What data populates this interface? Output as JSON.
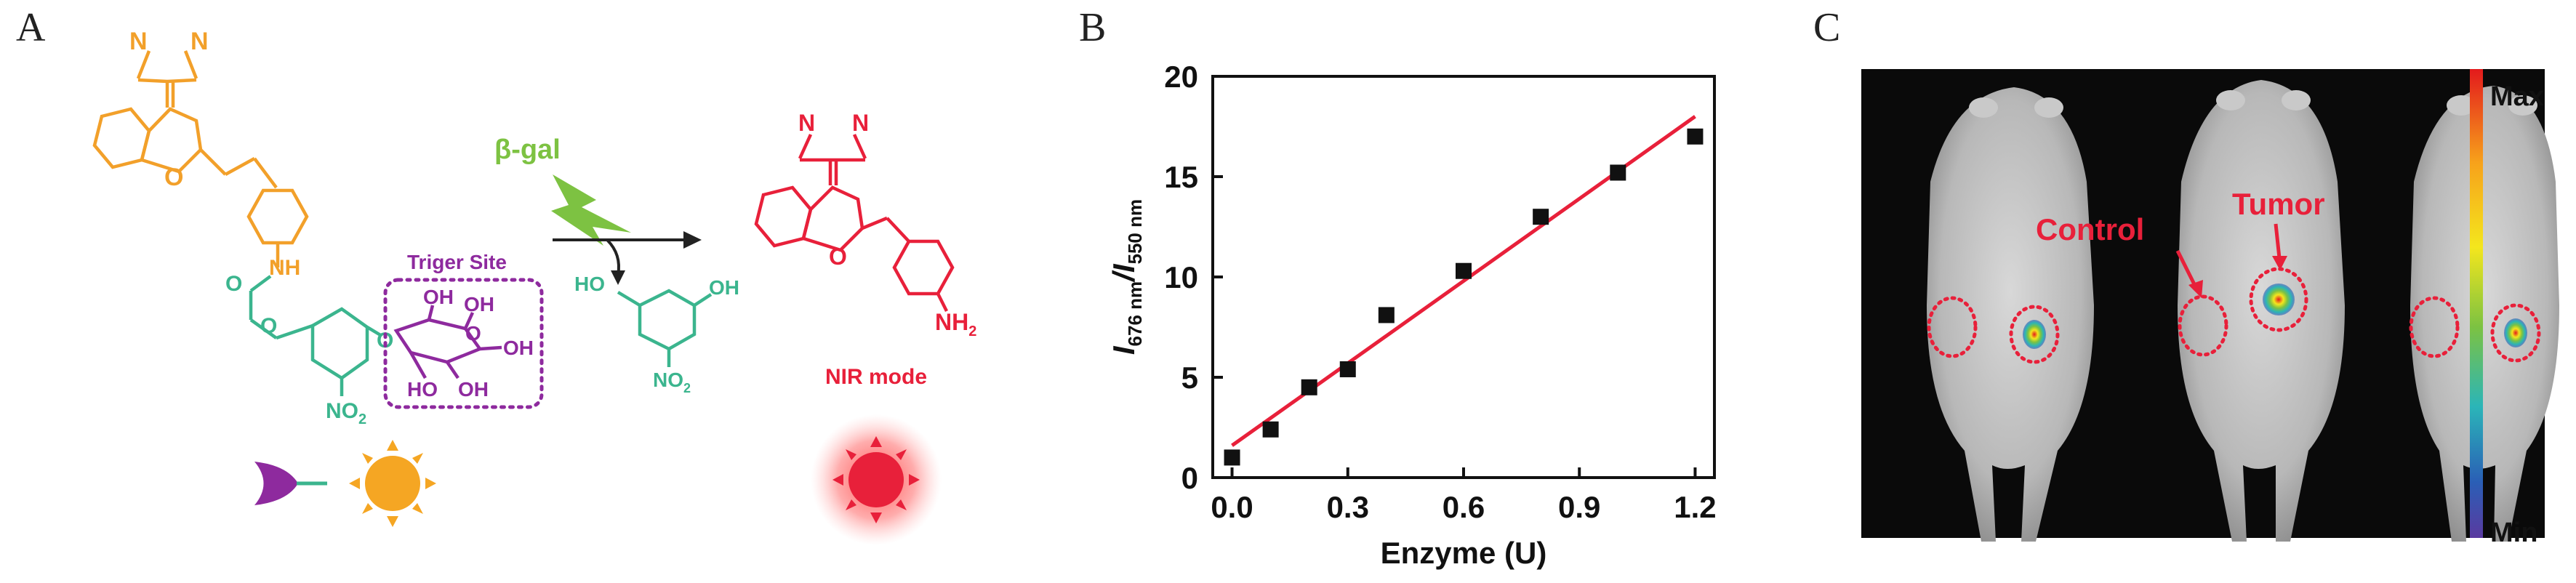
{
  "panels": {
    "a": {
      "letter": "A"
    },
    "b": {
      "letter": "B"
    },
    "c": {
      "letter": "C"
    }
  },
  "scheme": {
    "enzyme_label": "β-gal",
    "trigger_label": "Triger Site",
    "mode_label": "NIR mode",
    "colors": {
      "probe_orange": "#F2A02A",
      "linker_teal": "#3BB58E",
      "sugar_purple": "#8E2A9E",
      "product_red": "#E8203A",
      "enzyme_green": "#7DC242"
    },
    "atoms": {
      "n": "N",
      "o": "O",
      "nh": "NH",
      "oh": "OH",
      "ho": "HO",
      "no2": "NO",
      "no2_sub": "2",
      "nh2": "NH",
      "nh2_sub": "2"
    }
  },
  "chart_data": {
    "type": "scatter",
    "title": "",
    "xlabel": "Enzyme (U)",
    "ylabel_main": "I",
    "ylabel_sub1": "676 nm",
    "ylabel_mid": "/I",
    "ylabel_sub2": "550 nm",
    "xlim": [
      -0.05,
      1.25
    ],
    "ylim": [
      0,
      20
    ],
    "xticks": [
      0.0,
      0.3,
      0.6,
      0.9,
      1.2
    ],
    "xtick_labels": [
      "0.0",
      "0.3",
      "0.6",
      "0.9",
      "1.2"
    ],
    "yticks": [
      0,
      5,
      10,
      15,
      20
    ],
    "ytick_labels": [
      "0",
      "5",
      "10",
      "15",
      "20"
    ],
    "points": [
      {
        "x": 0.0,
        "y": 1.0
      },
      {
        "x": 0.1,
        "y": 2.4
      },
      {
        "x": 0.2,
        "y": 4.5
      },
      {
        "x": 0.3,
        "y": 5.4
      },
      {
        "x": 0.4,
        "y": 8.1
      },
      {
        "x": 0.6,
        "y": 10.3
      },
      {
        "x": 0.8,
        "y": 13.0
      },
      {
        "x": 1.0,
        "y": 15.2
      },
      {
        "x": 1.2,
        "y": 17.0
      }
    ],
    "fit_line": {
      "x0": 0.0,
      "y0": 1.6,
      "x1": 1.2,
      "y1": 18.0
    },
    "colors": {
      "points": "#111111",
      "fit": "#E8203A"
    }
  },
  "imaging": {
    "control_label": "Control",
    "tumor_label": "Tumor",
    "scale_max": "Max",
    "scale_min": "Min",
    "annotation_color": "#E8203A"
  }
}
